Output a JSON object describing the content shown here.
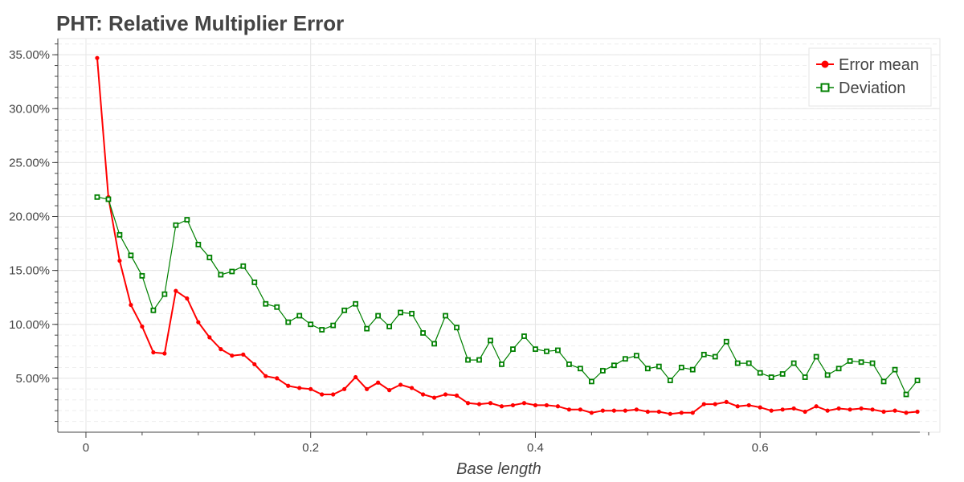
{
  "chart_data": {
    "type": "line",
    "title": "PHT: Relative Multiplier Error",
    "xlabel": "Base length",
    "ylabel": "",
    "xlim": [
      -0.025,
      0.76
    ],
    "ylim": [
      0.0,
      0.365
    ],
    "x_ticks": [
      0,
      0.2,
      0.4,
      0.6
    ],
    "x_tick_labels": [
      "0",
      "0.2",
      "0.4",
      "0.6"
    ],
    "y_ticks": [
      0.05,
      0.1,
      0.15,
      0.2,
      0.25,
      0.3,
      0.35
    ],
    "y_tick_labels": [
      "5.00%",
      "10.00%",
      "15.00%",
      "20.00%",
      "25.00%",
      "30.00%",
      "35.00%"
    ],
    "grid": true,
    "legend_position": "top-right",
    "x": [
      0.01,
      0.02,
      0.03,
      0.04,
      0.05,
      0.06,
      0.07,
      0.08,
      0.09,
      0.1,
      0.11,
      0.12,
      0.13,
      0.14,
      0.15,
      0.16,
      0.17,
      0.18,
      0.19,
      0.2,
      0.21,
      0.22,
      0.23,
      0.24,
      0.25,
      0.26,
      0.27,
      0.28,
      0.29,
      0.3,
      0.31,
      0.32,
      0.33,
      0.34,
      0.35,
      0.36,
      0.37,
      0.38,
      0.39,
      0.4,
      0.41,
      0.42,
      0.43,
      0.44,
      0.45,
      0.46,
      0.47,
      0.48,
      0.49,
      0.5,
      0.51,
      0.52,
      0.53,
      0.54,
      0.55,
      0.56,
      0.57,
      0.58,
      0.59,
      0.6,
      0.61,
      0.62,
      0.63,
      0.64,
      0.65,
      0.66,
      0.67,
      0.68,
      0.69,
      0.7,
      0.71,
      0.72,
      0.73,
      0.74
    ],
    "series": [
      {
        "name": "Error mean",
        "color": "#ff0000",
        "marker": "circle",
        "values": [
          0.347,
          0.218,
          0.159,
          0.118,
          0.098,
          0.074,
          0.073,
          0.131,
          0.124,
          0.102,
          0.088,
          0.077,
          0.071,
          0.072,
          0.063,
          0.052,
          0.05,
          0.043,
          0.041,
          0.04,
          0.035,
          0.035,
          0.04,
          0.051,
          0.04,
          0.046,
          0.039,
          0.044,
          0.041,
          0.035,
          0.032,
          0.035,
          0.034,
          0.027,
          0.026,
          0.027,
          0.024,
          0.025,
          0.027,
          0.025,
          0.025,
          0.024,
          0.021,
          0.021,
          0.018,
          0.02,
          0.02,
          0.02,
          0.021,
          0.019,
          0.019,
          0.017,
          0.018,
          0.018,
          0.026,
          0.026,
          0.028,
          0.024,
          0.025,
          0.023,
          0.02,
          0.021,
          0.022,
          0.019,
          0.024,
          0.02,
          0.022,
          0.021,
          0.022,
          0.021,
          0.019,
          0.02,
          0.018,
          0.019
        ]
      },
      {
        "name": "Deviation",
        "color": "#008000",
        "marker": "square",
        "values": [
          0.218,
          0.216,
          0.183,
          0.164,
          0.145,
          0.113,
          0.128,
          0.192,
          0.197,
          0.174,
          0.162,
          0.146,
          0.149,
          0.154,
          0.139,
          0.119,
          0.116,
          0.102,
          0.108,
          0.1,
          0.095,
          0.099,
          0.113,
          0.119,
          0.096,
          0.108,
          0.098,
          0.111,
          0.11,
          0.092,
          0.082,
          0.108,
          0.097,
          0.067,
          0.067,
          0.085,
          0.063,
          0.077,
          0.089,
          0.077,
          0.075,
          0.076,
          0.063,
          0.059,
          0.047,
          0.057,
          0.062,
          0.068,
          0.071,
          0.059,
          0.061,
          0.048,
          0.06,
          0.058,
          0.072,
          0.07,
          0.084,
          0.064,
          0.064,
          0.055,
          0.051,
          0.054,
          0.064,
          0.051,
          0.07,
          0.053,
          0.059,
          0.066,
          0.065,
          0.064,
          0.047,
          0.058,
          0.035,
          0.048
        ]
      }
    ]
  }
}
